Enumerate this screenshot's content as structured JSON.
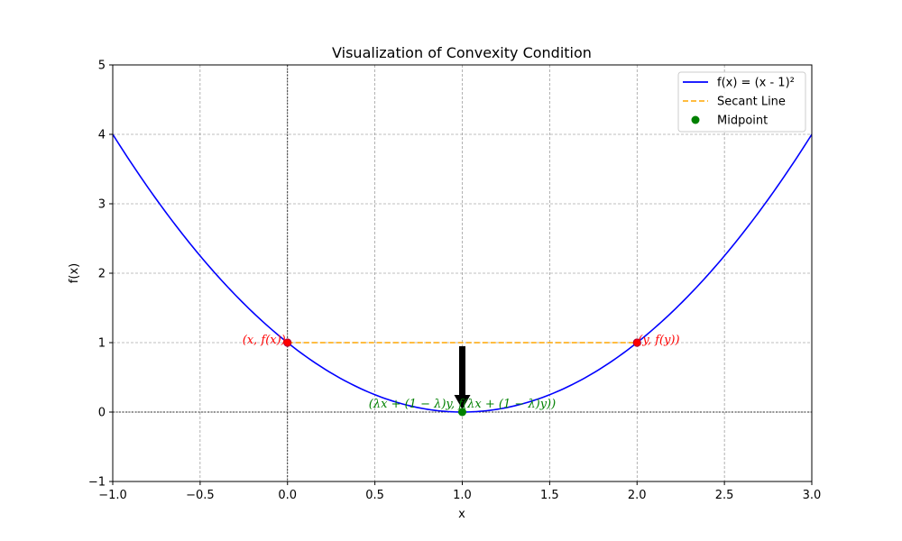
{
  "chart_data": {
    "type": "line",
    "title": "Visualization of Convexity Condition",
    "xlabel": "x",
    "ylabel": "f(x)",
    "xlim": [
      -1,
      3
    ],
    "ylim": [
      -1,
      5
    ],
    "x_ticks": [
      -1.0,
      -0.5,
      0.0,
      0.5,
      1.0,
      1.5,
      2.0,
      2.5,
      3.0
    ],
    "x_tick_labels": [
      "−1.0",
      "−0.5",
      "0.0",
      "0.5",
      "1.0",
      "1.5",
      "2.0",
      "2.5",
      "3.0"
    ],
    "y_ticks": [
      -1,
      0,
      1,
      2,
      3,
      4,
      5
    ],
    "y_tick_labels": [
      "−1",
      "0",
      "1",
      "2",
      "3",
      "4",
      "5"
    ],
    "grid": true,
    "legend_position": "top-right",
    "series": [
      {
        "name": "f(x) = (x - 1)²",
        "kind": "line",
        "color": "#0000ff",
        "x": [
          -1.0,
          -0.75,
          -0.5,
          -0.25,
          0.0,
          0.25,
          0.5,
          0.75,
          1.0,
          1.25,
          1.5,
          1.75,
          2.0,
          2.25,
          2.5,
          2.75,
          3.0
        ],
        "y": [
          4.0,
          3.0625,
          2.25,
          1.5625,
          1.0,
          0.5625,
          0.25,
          0.0625,
          0.0,
          0.0625,
          0.25,
          0.5625,
          1.0,
          1.5625,
          2.25,
          3.0625,
          4.0
        ]
      },
      {
        "name": "Secant Line",
        "kind": "dashed-line",
        "color": "#ffa500",
        "x": [
          0,
          2
        ],
        "y": [
          1,
          1
        ]
      },
      {
        "name": "Midpoint",
        "kind": "scatter",
        "color": "#008000",
        "x": [
          1
        ],
        "y": [
          0
        ]
      }
    ],
    "endpoints": {
      "color": "#ff0000",
      "points": [
        {
          "x": 0,
          "y": 1,
          "label": "(x, f(x))"
        },
        {
          "x": 2,
          "y": 1,
          "label": "(y, f(y))"
        }
      ]
    },
    "midpoint_label": "(λx + (1 − λ)y, f(λx + (1 − λ)y))",
    "arrow": {
      "from": [
        1,
        1
      ],
      "to": [
        1,
        0
      ],
      "color": "#000000"
    }
  }
}
